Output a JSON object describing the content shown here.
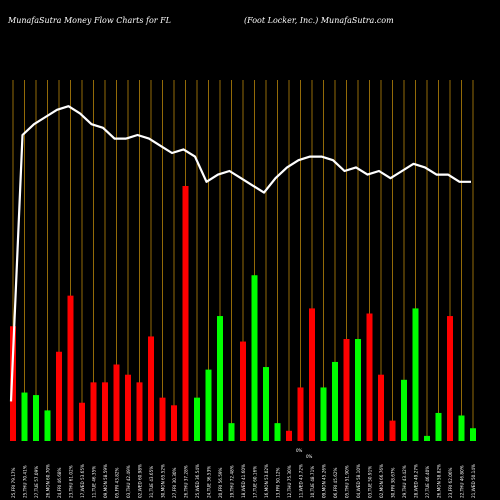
{
  "header": {
    "left": "MunafaSutra  Money Flow  Charts for FL",
    "right": "(Foot Locker, Inc.) MunafaSutra.com"
  },
  "chart_data": {
    "type": "bar",
    "grid": true,
    "colors": {
      "up": "#00ff00",
      "down": "#ff0000",
      "grid": "#b8860b",
      "line": "#ffffff",
      "background": "#000000"
    },
    "values": [
      0.45,
      0.19,
      0.18,
      0.12,
      0.35,
      0.57,
      0.15,
      0.23,
      0.23,
      0.3,
      0.26,
      0.23,
      0.41,
      0.17,
      0.14,
      1.0,
      0.17,
      0.28,
      0.49,
      0.07,
      0.39,
      0.65,
      0.29,
      0.07,
      0.04,
      0.21,
      0.52,
      0.21,
      0.31,
      0.4,
      0.4,
      0.5,
      0.26,
      0.08,
      0.24,
      0.52,
      0.02,
      0.11,
      0.49,
      0.1,
      0.05
    ],
    "directions": [
      "down",
      "up",
      "up",
      "up",
      "down",
      "down",
      "down",
      "down",
      "down",
      "down",
      "down",
      "down",
      "down",
      "down",
      "down",
      "down",
      "up",
      "up",
      "up",
      "up",
      "down",
      "up",
      "up",
      "up",
      "down",
      "down",
      "down",
      "up",
      "up",
      "down",
      "up",
      "down",
      "down",
      "down",
      "up",
      "up",
      "up",
      "up",
      "down",
      "up",
      "up"
    ],
    "line": [
      0.11,
      0.85,
      0.88,
      0.9,
      0.92,
      0.93,
      0.91,
      0.88,
      0.87,
      0.84,
      0.84,
      0.85,
      0.84,
      0.82,
      0.8,
      0.81,
      0.79,
      0.72,
      0.74,
      0.75,
      0.73,
      0.71,
      0.69,
      0.73,
      0.76,
      0.78,
      0.79,
      0.79,
      0.78,
      0.75,
      0.76,
      0.74,
      0.75,
      0.73,
      0.75,
      0.77,
      0.76,
      0.74,
      0.74,
      0.72,
      0.72
    ],
    "tick_labels": [
      "25,FRI 79.17%",
      "25,THU 70.41%",
      "27,TUE 57.09%",
      "26,MON 60.70%",
      "24,FRI 46.68%",
      "23,THU 61.02%",
      "17,WED 53.65%",
      "11,TUE 46.35%",
      "09,MON 58.59%",
      "05,FRI 43.82%",
      "03,THU 42.49%",
      "02,WED 60.98%",
      "31,TUE 43.65%",
      "30,MON 65.52%",
      "27,FRI 30.30%",
      "26,THU 37.28%",
      "25,WED 36.54%",
      "24,TUE 36.53%",
      "20,FRI 56.59%",
      "19,THU 72.48%",
      "18,WED 41.60%",
      "17,TUE 60.16%",
      "16,MON 53.02%",
      "13,FRI 50.12%",
      "12,THU 75.30%",
      "11,WED 43.72%",
      "10,TUE 48.71%",
      "09,MON 45.26%",
      "06,FRI 45.62%",
      "05,THU 51.90%",
      "04,WED 58.10%",
      "03,TUE 50.91%",
      "02,MON 66.76%",
      "30,FRI 38.67%",
      "29,THU 43.42%",
      "28,WED 49.27%",
      "27,TUE 46.40%",
      "26,MON 58.82%",
      "23,FRI 62.06%",
      "22,THU 46.80%",
      "21,WED 50.14%"
    ],
    "annotations": [
      "0%",
      "0%"
    ]
  }
}
